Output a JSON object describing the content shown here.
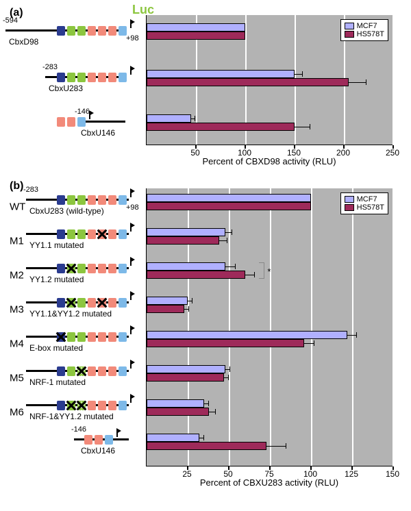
{
  "colors": {
    "mcf7": "#b0b0ff",
    "hs578t": "#9e2a5a",
    "chart_bg": "#b3b3b3",
    "grid": "#ffffff",
    "navy": "#2a3b8f",
    "green": "#8cc63f",
    "salmon": "#f28a7a",
    "sky": "#7db9e8"
  },
  "legend": {
    "mcf7": "MCF7",
    "hs578t": "HS578T"
  },
  "luc_label": "Luc",
  "panel_a": {
    "label": "(a)",
    "x_title": "Percent of CBXD98 activity (RLU)",
    "x_max": 250,
    "x_tick_step": 50,
    "x_tick_labels": [
      "50",
      "100",
      "150",
      "200",
      "250"
    ],
    "constructs": [
      {
        "name": "CbxD98",
        "start": "-594",
        "end": "+98",
        "boxes": [
          "navy",
          "green",
          "green",
          "salmon",
          "salmon",
          "salmon",
          "sky"
        ],
        "line_start": 0,
        "line_len": 175
      },
      {
        "name": "CbxU283",
        "start": "-283",
        "boxes": [
          "navy",
          "green",
          "green",
          "salmon",
          "salmon",
          "salmon",
          "sky"
        ],
        "line_start": 58,
        "line_len": 117
      },
      {
        "name": "CbxU146",
        "start": "-146",
        "boxes": [
          "salmon",
          "salmon",
          "sky"
        ],
        "line_start": 105,
        "line_len": 70
      }
    ],
    "bars": [
      {
        "mcf7": 100,
        "mcf7_err": 0,
        "hs": 100,
        "hs_err": 0
      },
      {
        "mcf7": 150,
        "mcf7_err": 8,
        "hs": 205,
        "hs_err": 18
      },
      {
        "mcf7": 45,
        "mcf7_err": 4,
        "hs": 150,
        "hs_err": 16
      }
    ]
  },
  "panel_b": {
    "label": "(b)",
    "x_title": "Percent of CBXU283 activity (RLU)",
    "x_max": 150,
    "x_tick_step": 25,
    "x_tick_labels": [
      "25",
      "50",
      "75",
      "100",
      "125",
      "150"
    ],
    "rows": [
      {
        "tag": "WT",
        "name": "CbxU283 (wild-type)",
        "start": "-283",
        "end": "+98",
        "boxes": [
          "navy",
          "green",
          "green",
          "salmon",
          "salmon",
          "salmon",
          "sky"
        ],
        "crosses": [],
        "dots": [],
        "mcf7": 100,
        "mcf7_err": 0,
        "hs": 100,
        "hs_err": 0
      },
      {
        "tag": "M1",
        "name": "YY1.1 mutated",
        "boxes": [
          "navy",
          "green",
          "green",
          "salmon",
          "salmon",
          "salmon",
          "sky"
        ],
        "crosses": [
          4
        ],
        "dots": [],
        "mcf7": 48,
        "mcf7_err": 4,
        "hs": 44,
        "hs_err": 5
      },
      {
        "tag": "M2",
        "name": "YY1.2 mutated",
        "boxes": [
          "navy",
          "green",
          "green",
          "salmon",
          "salmon",
          "salmon",
          "sky"
        ],
        "crosses": [
          1
        ],
        "dots": [],
        "mcf7": 48,
        "mcf7_err": 6,
        "hs": 60,
        "hs_err": 6,
        "sig": "*"
      },
      {
        "tag": "M3",
        "name": "YY1.1&YY1.2 mutated",
        "boxes": [
          "navy",
          "green",
          "green",
          "salmon",
          "salmon",
          "salmon",
          "sky"
        ],
        "crosses": [
          1,
          4
        ],
        "dots": [],
        "mcf7": 25,
        "mcf7_err": 3,
        "hs": 23,
        "hs_err": 3
      },
      {
        "tag": "M4",
        "name": "E-box mutated",
        "boxes": [
          "navy",
          "green",
          "green",
          "salmon",
          "salmon",
          "salmon",
          "sky"
        ],
        "crosses": [
          0
        ],
        "dots": [],
        "mcf7": 122,
        "mcf7_err": 6,
        "hs": 96,
        "hs_err": 6
      },
      {
        "tag": "M5",
        "name": "NRF-1 mutated",
        "boxes": [
          "navy",
          "green",
          "green",
          "salmon",
          "salmon",
          "salmon",
          "sky"
        ],
        "crosses": [
          2
        ],
        "dots": [
          2
        ],
        "mcf7": 48,
        "mcf7_err": 3,
        "hs": 47,
        "hs_err": 3
      },
      {
        "tag": "M6",
        "name": "NRF-1&YY1.2 mutated",
        "boxes": [
          "navy",
          "green",
          "green",
          "salmon",
          "salmon",
          "salmon",
          "sky"
        ],
        "crosses": [
          1,
          2
        ],
        "dots": [
          2
        ],
        "mcf7": 35,
        "mcf7_err": 3,
        "hs": 38,
        "hs_err": 4
      },
      {
        "tag": "",
        "name": "CbxU146",
        "start": "-146",
        "boxes": [
          "salmon",
          "salmon",
          "sky"
        ],
        "short": true,
        "crosses": [],
        "dots": [],
        "mcf7": 32,
        "mcf7_err": 3,
        "hs": 73,
        "hs_err": 12
      }
    ]
  }
}
